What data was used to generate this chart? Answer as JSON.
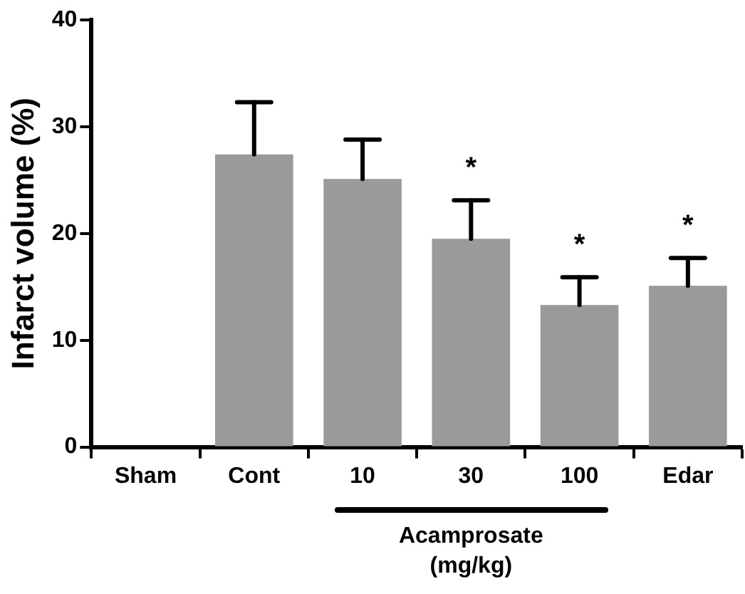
{
  "chart_data": {
    "type": "bar",
    "ylabel": "Infarct volume (%)",
    "categories": [
      "Sham",
      "Cont",
      "10",
      "30",
      "100",
      "Edar"
    ],
    "values": [
      0,
      27.4,
      25.1,
      19.5,
      13.3,
      15.1
    ],
    "errors": [
      null,
      [
        27.4,
        32.3
      ],
      [
        25.1,
        28.8
      ],
      [
        19.5,
        23.1
      ],
      [
        13.3,
        15.9
      ],
      [
        15.1,
        17.7
      ]
    ],
    "color": "#9a9a9a",
    "ylim": [
      0,
      40
    ],
    "yticks": [
      0,
      10,
      20,
      30,
      40
    ],
    "grid": false,
    "legend": false,
    "annotations": [
      {
        "text": "*",
        "x": "30",
        "y": 23.1
      },
      {
        "text": "*",
        "x": "100",
        "y": 15.9
      },
      {
        "text": "*",
        "x": "Edar",
        "y": 17.7
      },
      "Acamprosate\n(mg/kg)"
    ]
  }
}
